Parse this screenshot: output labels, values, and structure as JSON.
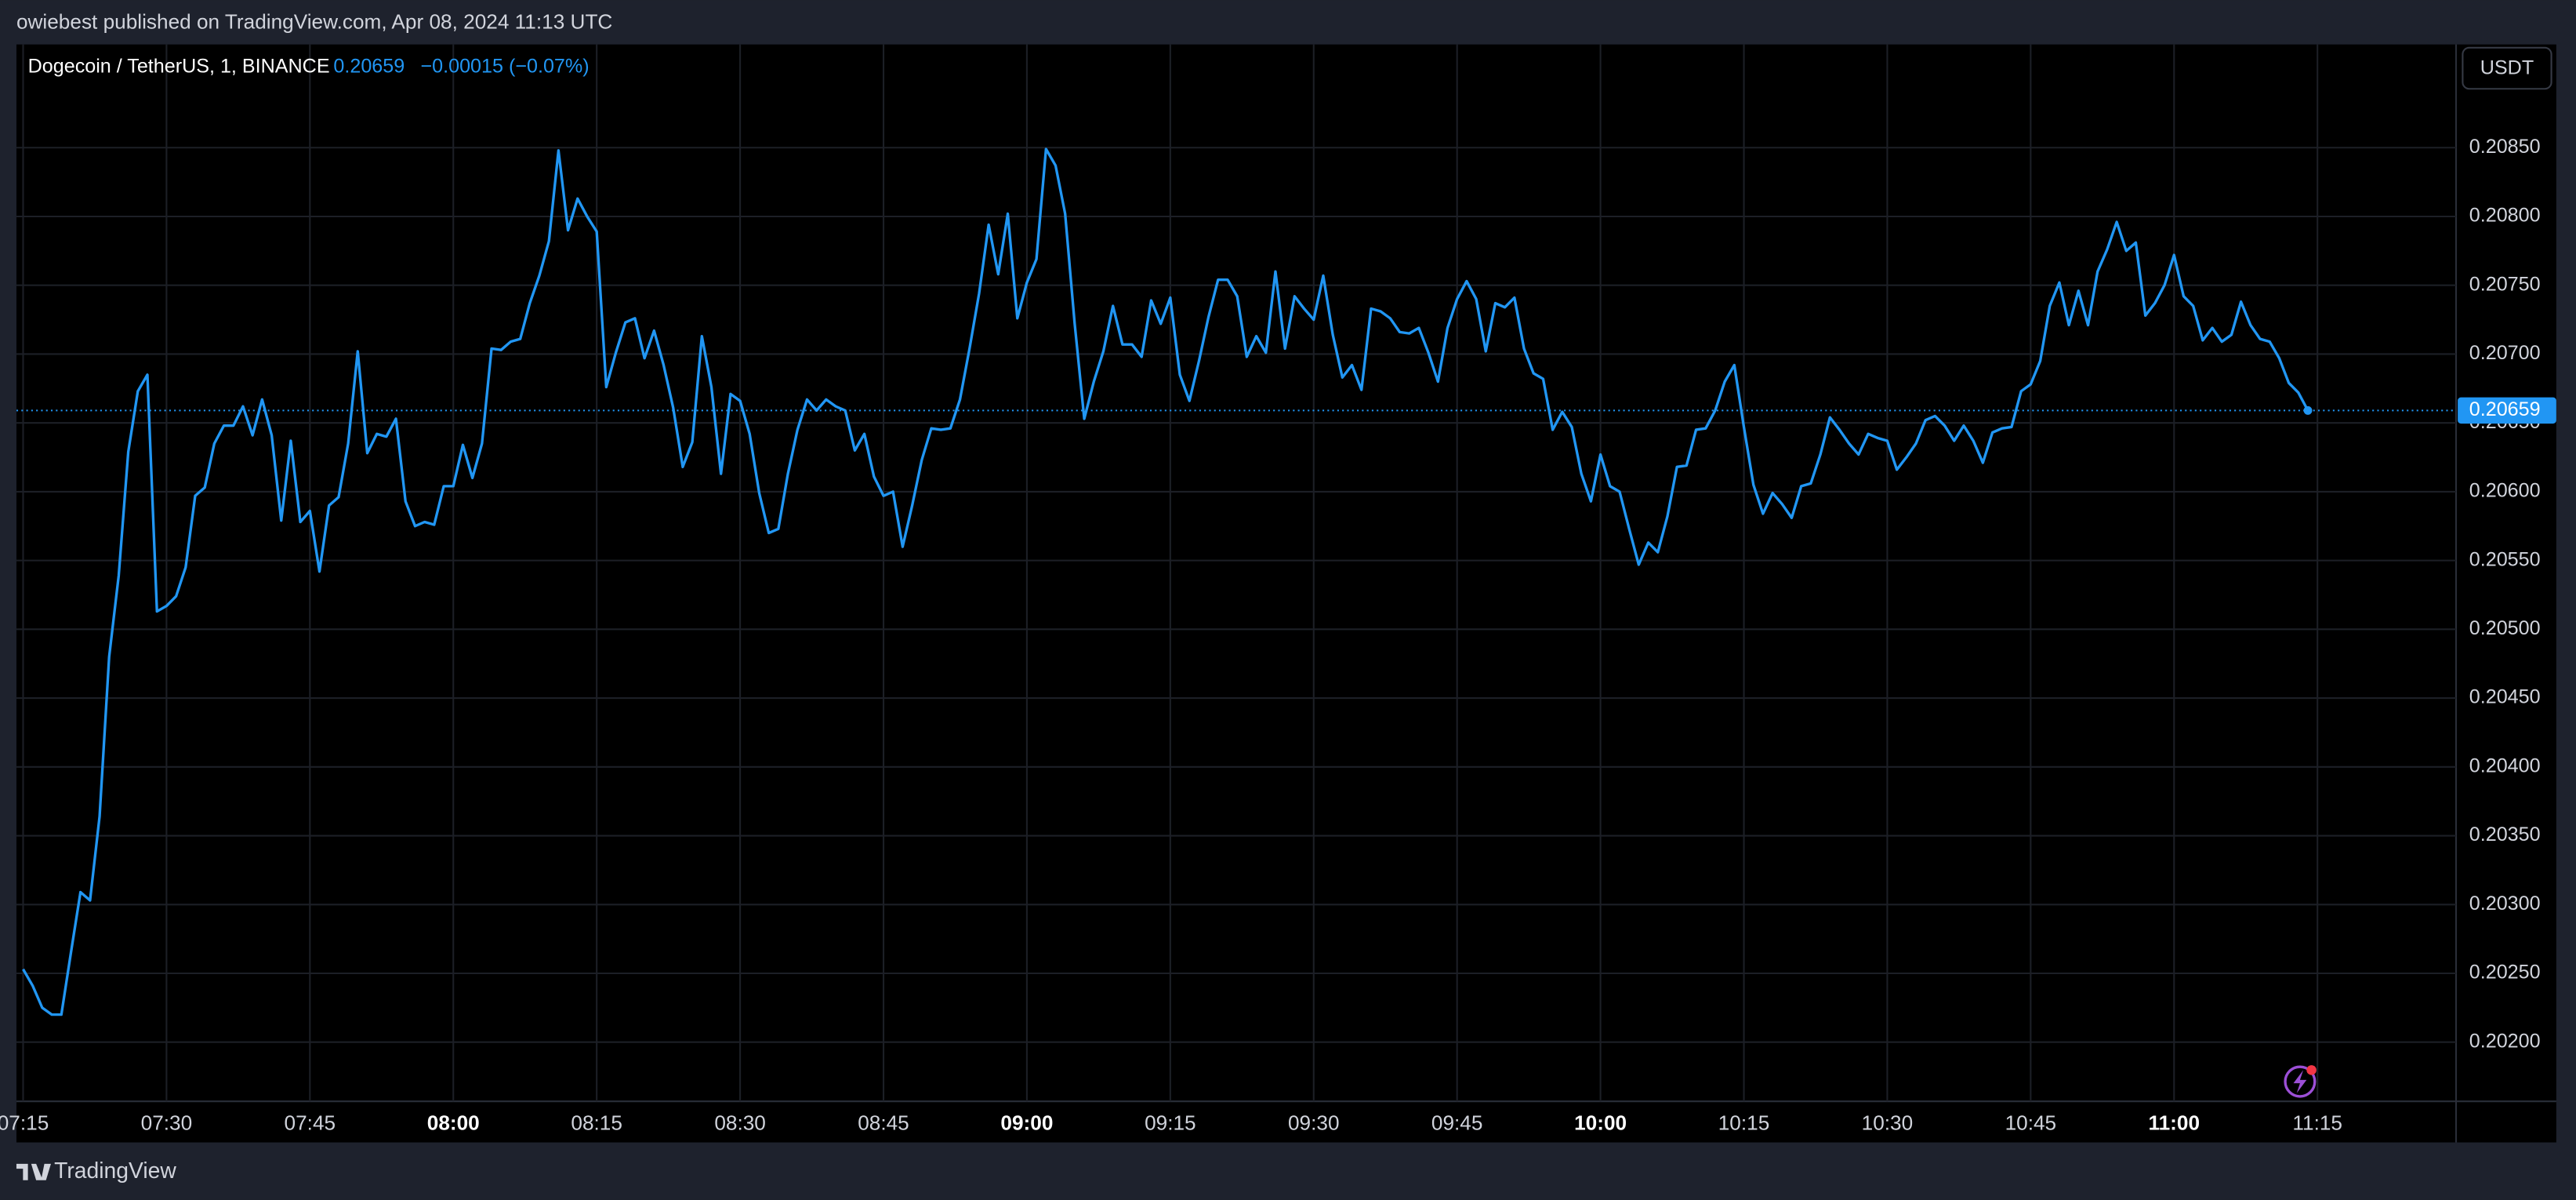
{
  "chart_data": {
    "type": "line",
    "subtitle": "owiebest published on TradingView.com, Apr 08, 2024 11:13 UTC",
    "title": "Dogecoin / TetherUS, 1, BINANCE",
    "change_label": "−0.00015 (−0.07%)",
    "currency": "USDT",
    "brand": "TradingView",
    "color": "#2196f3",
    "grid": true,
    "xlim": [
      434.3,
      689.5
    ],
    "ylim": [
      0.20157,
      0.20925
    ],
    "xticks": [
      {
        "value": 435,
        "label": "07:15"
      },
      {
        "value": 450,
        "label": "07:30"
      },
      {
        "value": 465,
        "label": "07:45"
      },
      {
        "value": 480,
        "label": "08:00"
      },
      {
        "value": 495,
        "label": "08:15"
      },
      {
        "value": 510,
        "label": "08:30"
      },
      {
        "value": 525,
        "label": "08:45"
      },
      {
        "value": 540,
        "label": "09:00"
      },
      {
        "value": 555,
        "label": "09:15"
      },
      {
        "value": 570,
        "label": "09:30"
      },
      {
        "value": 585,
        "label": "09:45"
      },
      {
        "value": 600,
        "label": "10:00"
      },
      {
        "value": 615,
        "label": "10:15"
      },
      {
        "value": 630,
        "label": "10:30"
      },
      {
        "value": 645,
        "label": "10:45"
      },
      {
        "value": 660,
        "label": "11:00"
      },
      {
        "value": 675,
        "label": "11:15"
      }
    ],
    "yticks": [
      {
        "value": 0.202,
        "label": "0.20200"
      },
      {
        "value": 0.2025,
        "label": "0.20250"
      },
      {
        "value": 0.203,
        "label": "0.20300"
      },
      {
        "value": 0.2035,
        "label": "0.20350"
      },
      {
        "value": 0.204,
        "label": "0.20400"
      },
      {
        "value": 0.2045,
        "label": "0.20450"
      },
      {
        "value": 0.205,
        "label": "0.20500"
      },
      {
        "value": 0.2055,
        "label": "0.20550"
      },
      {
        "value": 0.206,
        "label": "0.20600"
      },
      {
        "value": 0.2065,
        "label": "0.20650"
      },
      {
        "value": 0.207,
        "label": "0.20700"
      },
      {
        "value": 0.2075,
        "label": "0.20750"
      },
      {
        "value": 0.208,
        "label": "0.20800"
      },
      {
        "value": 0.2085,
        "label": "0.20850"
      }
    ],
    "x": [
      435,
      436,
      437,
      438,
      439,
      440,
      441,
      442,
      443,
      444,
      445,
      446,
      447,
      448,
      449,
      450,
      451,
      452,
      453,
      454,
      455,
      456,
      457,
      458,
      459,
      460,
      461,
      462,
      463,
      464,
      465,
      466,
      467,
      468,
      469,
      470,
      471,
      472,
      473,
      474,
      475,
      476,
      477,
      478,
      479,
      480,
      481,
      482,
      483,
      484,
      485,
      486,
      487,
      488,
      489,
      490,
      491,
      492,
      493,
      494,
      495,
      496,
      497,
      498,
      499,
      500,
      501,
      502,
      503,
      504,
      505,
      506,
      507,
      508,
      509,
      510,
      511,
      512,
      513,
      514,
      515,
      516,
      517,
      518,
      519,
      520,
      521,
      522,
      523,
      524,
      525,
      526,
      527,
      528,
      529,
      530,
      531,
      532,
      533,
      534,
      535,
      536,
      537,
      538,
      539,
      540,
      541,
      542,
      543,
      544,
      545,
      546,
      547,
      548,
      549,
      550,
      551,
      552,
      553,
      554,
      555,
      556,
      557,
      558,
      559,
      560,
      561,
      562,
      563,
      564,
      565,
      566,
      567,
      568,
      569,
      570,
      571,
      572,
      573,
      574,
      575,
      576,
      577,
      578,
      579,
      580,
      581,
      582,
      583,
      584,
      585,
      586,
      587,
      588,
      589,
      590,
      591,
      592,
      593,
      594,
      595,
      596,
      597,
      598,
      599,
      600,
      601,
      602,
      603,
      604,
      605,
      606,
      607,
      608,
      609,
      610,
      611,
      612,
      613,
      614,
      615,
      616,
      617,
      618,
      619,
      620,
      621,
      622,
      623,
      624,
      625,
      626,
      627,
      628,
      629,
      630,
      631,
      632,
      633,
      634,
      635,
      636,
      637,
      638,
      639,
      640,
      641,
      642,
      643,
      644,
      645,
      646,
      647,
      648,
      649,
      650,
      651,
      652,
      653,
      654,
      655,
      656,
      657,
      658,
      659,
      660,
      661,
      662,
      663,
      664,
      665,
      666,
      667,
      668,
      669,
      670,
      671,
      672,
      673,
      674
    ],
    "values": [
      0.20253,
      0.20241,
      0.20225,
      0.2022,
      0.2022,
      0.20265,
      0.20309,
      0.20303,
      0.20364,
      0.2048,
      0.20539,
      0.20629,
      0.20673,
      0.20685,
      0.20513,
      0.20517,
      0.20524,
      0.20545,
      0.20597,
      0.20603,
      0.20635,
      0.20648,
      0.20648,
      0.20662,
      0.20641,
      0.20667,
      0.20641,
      0.20579,
      0.20637,
      0.20578,
      0.20586,
      0.20542,
      0.2059,
      0.20596,
      0.20635,
      0.20702,
      0.20628,
      0.20642,
      0.2064,
      0.20653,
      0.20593,
      0.20575,
      0.20578,
      0.20576,
      0.20604,
      0.20604,
      0.20634,
      0.2061,
      0.20635,
      0.20704,
      0.20703,
      0.20709,
      0.20711,
      0.20737,
      0.20757,
      0.20782,
      0.20848,
      0.2079,
      0.20813,
      0.208,
      0.20789,
      0.20676,
      0.20701,
      0.20723,
      0.20726,
      0.20697,
      0.20717,
      0.20692,
      0.20661,
      0.20618,
      0.20636,
      0.20713,
      0.20676,
      0.20613,
      0.20671,
      0.20666,
      0.20642,
      0.20599,
      0.2057,
      0.20573,
      0.20613,
      0.20645,
      0.20667,
      0.20659,
      0.20667,
      0.20662,
      0.20659,
      0.2063,
      0.20642,
      0.20611,
      0.20597,
      0.206,
      0.2056,
      0.2059,
      0.20623,
      0.20646,
      0.20645,
      0.20646,
      0.20667,
      0.20704,
      0.20744,
      0.20794,
      0.20758,
      0.20802,
      0.20726,
      0.20752,
      0.20769,
      0.20849,
      0.20837,
      0.20802,
      0.20722,
      0.20653,
      0.2068,
      0.20702,
      0.20735,
      0.20707,
      0.20707,
      0.20698,
      0.20739,
      0.20722,
      0.20741,
      0.20685,
      0.20666,
      0.20695,
      0.20727,
      0.20754,
      0.20754,
      0.20742,
      0.20698,
      0.20713,
      0.20701,
      0.2076,
      0.20704,
      0.20742,
      0.20733,
      0.20725,
      0.20757,
      0.20714,
      0.20683,
      0.20692,
      0.20674,
      0.20733,
      0.20731,
      0.20726,
      0.20716,
      0.20715,
      0.20719,
      0.20701,
      0.2068,
      0.20719,
      0.2074,
      0.20753,
      0.2074,
      0.20702,
      0.20737,
      0.20734,
      0.20741,
      0.20704,
      0.20686,
      0.20682,
      0.20645,
      0.20658,
      0.20647,
      0.20613,
      0.20593,
      0.20627,
      0.20604,
      0.206,
      0.20573,
      0.20547,
      0.20563,
      0.20556,
      0.20582,
      0.20618,
      0.20619,
      0.20645,
      0.20646,
      0.20659,
      0.2068,
      0.20692,
      0.20647,
      0.20605,
      0.20584,
      0.20599,
      0.20591,
      0.20581,
      0.20604,
      0.20606,
      0.20627,
      0.20654,
      0.20645,
      0.20635,
      0.20627,
      0.20642,
      0.20639,
      0.20637,
      0.20616,
      0.20625,
      0.20635,
      0.20652,
      0.20655,
      0.20648,
      0.20637,
      0.20648,
      0.20637,
      0.20621,
      0.20643,
      0.20646,
      0.20647,
      0.20673,
      0.20678,
      0.20695,
      0.20735,
      0.20752,
      0.20721,
      0.20746,
      0.20721,
      0.2076,
      0.20776,
      0.20796,
      0.20775,
      0.20781,
      0.20728,
      0.20737,
      0.2075,
      0.20772,
      0.20742,
      0.20735,
      0.2071,
      0.20719,
      0.20709,
      0.20714,
      0.20738,
      0.20721,
      0.20711,
      0.20709,
      0.20697,
      0.20679,
      0.20672,
      0.20659
    ]
  }
}
